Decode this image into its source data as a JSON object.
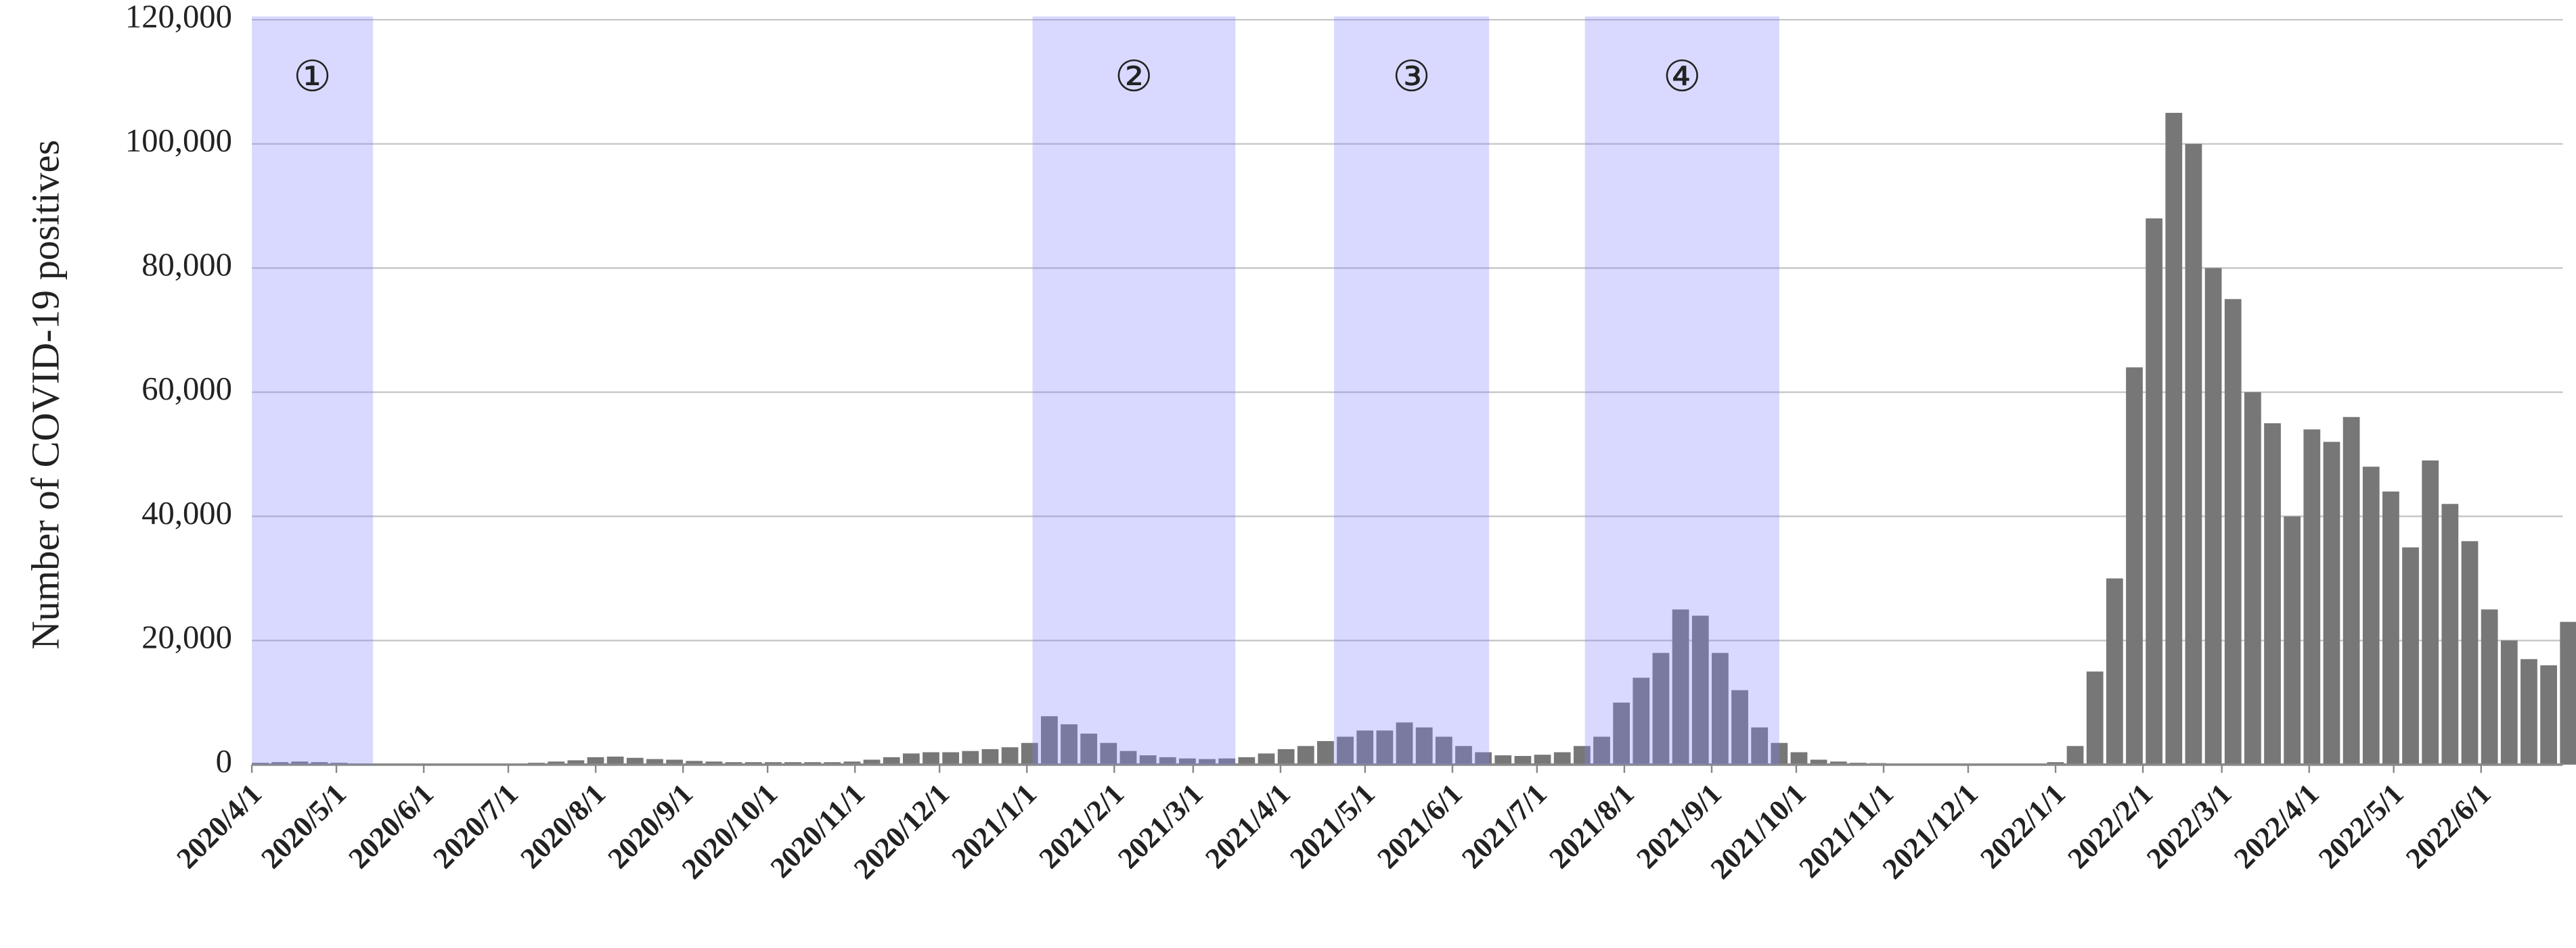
{
  "chart_data": {
    "type": "bar",
    "y_label": "Number of COVID-19 positives",
    "color": "#777777",
    "grid": true,
    "xlim": [
      "2020/4/1",
      "2022/6/30"
    ],
    "ylim": [
      0,
      120000
    ],
    "yticks": [
      0,
      {
        "value": 20000,
        "label": "20,000"
      },
      {
        "value": 40000,
        "label": "40,000"
      },
      {
        "value": 60000,
        "label": "60,000"
      },
      {
        "value": 80000,
        "label": "80,000"
      },
      {
        "value": 100000,
        "label": "100,000"
      },
      {
        "value": 120000,
        "label": "120,000"
      }
    ],
    "xticks": [
      "2020/4/1",
      "2020/5/1",
      "2020/6/1",
      "2020/7/1",
      "2020/8/1",
      "2020/9/1",
      "2020/10/1",
      "2020/11/1",
      "2020/12/1",
      "2021/1/1",
      "2021/2/1",
      "2021/3/1",
      "2021/4/1",
      "2021/5/1",
      "2021/6/1",
      "2021/7/1",
      "2021/8/1",
      "2021/9/1",
      "2021/10/1",
      "2021/11/1",
      "2021/12/1",
      "2022/1/1",
      "2022/2/1",
      "2022/3/1",
      "2022/4/1",
      "2022/5/1",
      "2022/6/1"
    ],
    "periods": [
      {
        "start": "2020/4/1",
        "end": "2020/5/14",
        "label": "①"
      },
      {
        "start": "2021/1/3",
        "end": "2021/3/16",
        "label": "②"
      },
      {
        "start": "2021/4/20",
        "end": "2021/6/14",
        "label": "③"
      },
      {
        "start": "2021/7/18",
        "end": "2021/9/25",
        "label": "④"
      }
    ],
    "x": [
      "2020/4/1",
      "2020/4/8",
      "2020/4/15",
      "2020/4/22",
      "2020/4/29",
      "2020/5/6",
      "2020/5/13",
      "2020/5/20",
      "2020/5/27",
      "2020/6/3",
      "2020/6/10",
      "2020/6/17",
      "2020/6/24",
      "2020/7/1",
      "2020/7/8",
      "2020/7/15",
      "2020/7/22",
      "2020/7/29",
      "2020/8/5",
      "2020/8/12",
      "2020/8/19",
      "2020/8/26",
      "2020/9/2",
      "2020/9/9",
      "2020/9/16",
      "2020/9/23",
      "2020/9/30",
      "2020/10/7",
      "2020/10/14",
      "2020/10/21",
      "2020/10/28",
      "2020/11/4",
      "2020/11/11",
      "2020/11/18",
      "2020/11/25",
      "2020/12/2",
      "2020/12/9",
      "2020/12/16",
      "2020/12/23",
      "2020/12/30",
      "2021/1/6",
      "2021/1/13",
      "2021/1/20",
      "2021/1/27",
      "2021/2/3",
      "2021/2/10",
      "2021/2/17",
      "2021/2/24",
      "2021/3/3",
      "2021/3/10",
      "2021/3/17",
      "2021/3/24",
      "2021/3/31",
      "2021/4/7",
      "2021/4/14",
      "2021/4/21",
      "2021/4/28",
      "2021/5/5",
      "2021/5/12",
      "2021/5/19",
      "2021/5/26",
      "2021/6/2",
      "2021/6/9",
      "2021/6/16",
      "2021/6/23",
      "2021/6/30",
      "2021/7/7",
      "2021/7/14",
      "2021/7/21",
      "2021/7/28",
      "2021/8/4",
      "2021/8/11",
      "2021/8/18",
      "2021/8/25",
      "2021/9/1",
      "2021/9/8",
      "2021/9/15",
      "2021/9/22",
      "2021/9/29",
      "2021/10/6",
      "2021/10/13",
      "2021/10/20",
      "2021/10/27",
      "2021/11/3",
      "2021/11/10",
      "2021/11/17",
      "2021/11/24",
      "2021/12/1",
      "2021/12/8",
      "2021/12/15",
      "2021/12/22",
      "2021/12/29",
      "2022/1/5",
      "2022/1/12",
      "2022/1/19",
      "2022/1/26",
      "2022/2/2",
      "2022/2/9",
      "2022/2/16",
      "2022/2/23",
      "2022/3/2",
      "2022/3/9",
      "2022/3/16",
      "2022/3/23",
      "2022/3/30",
      "2022/4/6",
      "2022/4/13",
      "2022/4/20",
      "2022/4/27",
      "2022/5/4",
      "2022/5/11",
      "2022/5/18",
      "2022/5/25",
      "2022/6/1",
      "2022/6/8",
      "2022/6/15",
      "2022/6/22",
      "2022/6/29"
    ],
    "values": [
      300,
      400,
      500,
      400,
      300,
      150,
      100,
      50,
      50,
      50,
      50,
      50,
      100,
      200,
      300,
      500,
      700,
      1200,
      1300,
      1100,
      900,
      800,
      600,
      500,
      400,
      400,
      400,
      400,
      400,
      400,
      500,
      800,
      1200,
      1800,
      2000,
      2000,
      2200,
      2500,
      2800,
      3500,
      7800,
      6500,
      5000,
      3500,
      2200,
      1500,
      1200,
      1000,
      900,
      1000,
      1200,
      1800,
      2500,
      3000,
      3800,
      4500,
      5500,
      5500,
      6800,
      6000,
      4500,
      3000,
      2000,
      1500,
      1400,
      1600,
      2000,
      3000,
      4500,
      10000,
      14000,
      18000,
      25000,
      24000,
      18000,
      12000,
      6000,
      3500,
      2000,
      800,
      500,
      300,
      250,
      200,
      150,
      150,
      100,
      100,
      100,
      150,
      200,
      400,
      3000,
      15000,
      30000,
      64000,
      88000,
      105000,
      100000,
      80000,
      75000,
      60000,
      55000,
      40000,
      54000,
      52000,
      56000,
      48000,
      44000,
      35000,
      49000,
      42000,
      36000,
      25000,
      20000,
      17000,
      16000,
      23000
    ]
  }
}
